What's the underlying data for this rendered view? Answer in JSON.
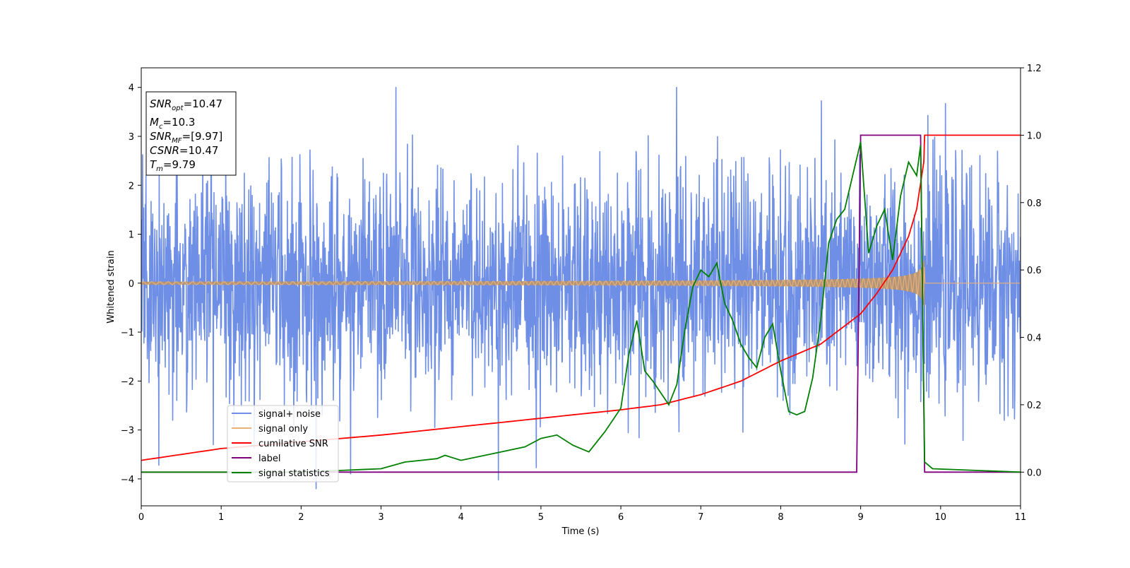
{
  "chart_data": {
    "type": "line",
    "xlabel": "Time (s)",
    "ylabel": "Whitened strain",
    "xlim": [
      0,
      11
    ],
    "ylim_left": [
      -4.55,
      4.4
    ],
    "ylim_right": [
      -0.1,
      1.2
    ],
    "xticks": [
      0,
      1,
      2,
      3,
      4,
      5,
      6,
      7,
      8,
      9,
      10,
      11
    ],
    "yticks_left": [
      4,
      3,
      2,
      1,
      0,
      -1,
      -2,
      -3,
      -4
    ],
    "yticks_right": [
      1.2,
      1.0,
      0.8,
      0.6,
      0.4,
      0.2,
      0.0
    ],
    "grid": false,
    "legend_position": "lower-left",
    "colors": {
      "signal_noise": "#6f8fe6",
      "signal_only": "#e8b07a",
      "cumulative_snr": "#ff0000",
      "label": "#800080",
      "signal_statistics": "#008000"
    },
    "noise_amplitude": 1.15,
    "signal_chirp": {
      "start_amplitude": 0.03,
      "merge_amplitude": 0.75,
      "merge_time": 9.79,
      "end_time": 9.8
    },
    "series": [
      {
        "name": "signal+ noise",
        "axis": "left"
      },
      {
        "name": "signal only",
        "axis": "left"
      },
      {
        "name": "cumilative SNR",
        "axis": "right",
        "x": [
          0,
          1,
          2,
          3,
          4,
          5,
          6,
          6.5,
          7,
          7.5,
          8,
          8.5,
          9,
          9.2,
          9.4,
          9.6,
          9.7,
          9.79,
          9.8,
          11
        ],
        "y": [
          0.035,
          0.07,
          0.09,
          0.11,
          0.135,
          0.16,
          0.185,
          0.2,
          0.23,
          0.27,
          0.33,
          0.38,
          0.47,
          0.53,
          0.6,
          0.7,
          0.78,
          0.92,
          1.0,
          1.0
        ]
      },
      {
        "name": "label",
        "axis": "right",
        "x": [
          0,
          8.95,
          9.0,
          9.75,
          9.8,
          11
        ],
        "y": [
          0.0,
          0.0,
          1.0,
          1.0,
          0.0,
          0.0
        ]
      },
      {
        "name": "signal statistics",
        "axis": "right",
        "x": [
          0,
          1,
          2,
          2.5,
          3,
          3.3,
          3.5,
          3.7,
          3.8,
          4,
          4.5,
          4.8,
          5,
          5.2,
          5.4,
          5.6,
          5.8,
          6.0,
          6.1,
          6.2,
          6.3,
          6.4,
          6.6,
          6.7,
          6.8,
          6.9,
          7.0,
          7.1,
          7.2,
          7.3,
          7.4,
          7.5,
          7.6,
          7.7,
          7.8,
          7.9,
          8.0,
          8.1,
          8.2,
          8.3,
          8.4,
          8.5,
          8.6,
          8.7,
          8.8,
          8.9,
          9.0,
          9.1,
          9.2,
          9.3,
          9.4,
          9.5,
          9.6,
          9.7,
          9.75,
          9.8,
          9.9,
          11
        ],
        "y": [
          0.0,
          0.0,
          0.0,
          0.005,
          0.01,
          0.03,
          0.035,
          0.04,
          0.05,
          0.035,
          0.06,
          0.075,
          0.1,
          0.11,
          0.08,
          0.06,
          0.12,
          0.19,
          0.35,
          0.45,
          0.3,
          0.27,
          0.2,
          0.26,
          0.42,
          0.55,
          0.6,
          0.58,
          0.62,
          0.5,
          0.45,
          0.38,
          0.34,
          0.31,
          0.4,
          0.44,
          0.3,
          0.18,
          0.17,
          0.18,
          0.28,
          0.45,
          0.68,
          0.75,
          0.78,
          0.88,
          0.98,
          0.65,
          0.73,
          0.78,
          0.63,
          0.82,
          0.92,
          0.88,
          0.97,
          0.03,
          0.01,
          0.0
        ]
      }
    ],
    "annotation": {
      "snr_opt": {
        "base": "SNR",
        "sub": "opt",
        "value": "=10.47"
      },
      "mc": {
        "base": "M",
        "sub": "c",
        "value": "=10.3"
      },
      "snr_mf": {
        "base": "SNR",
        "sub": "MF",
        "value": "=[9.97]"
      },
      "csnr": {
        "base": "CSNR",
        "sub": "",
        "value": "=10.47"
      },
      "tm": {
        "base": "T",
        "sub": "m",
        "value": "=9.79"
      }
    }
  }
}
